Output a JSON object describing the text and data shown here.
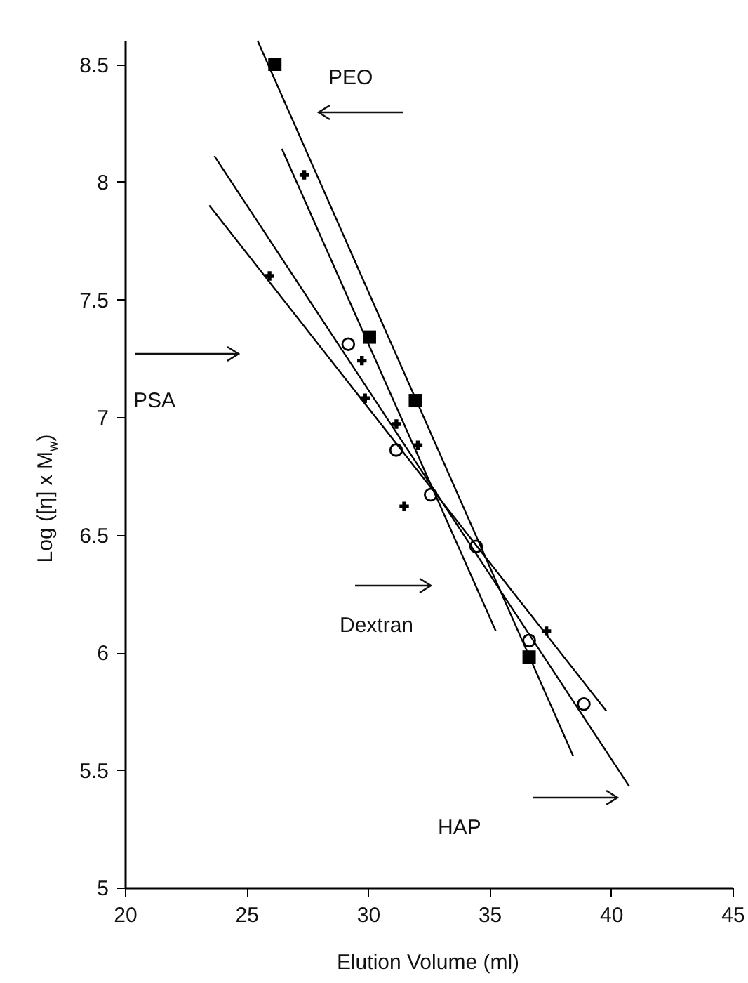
{
  "chart_data": {
    "type": "scatter",
    "xlabel": "Elution Volume (ml)",
    "ylabel": "Log ([η] x M$_{w}$)",
    "xlim": [
      20,
      45
    ],
    "ylim": [
      5,
      8.6
    ],
    "xticks": [
      20,
      25,
      30,
      35,
      40,
      45
    ],
    "yticks": [
      5,
      5.5,
      6,
      6.5,
      7,
      7.5,
      8,
      8.5
    ],
    "grid": false,
    "annotations": [
      "PEO",
      "PSA",
      "Dextran",
      "HAP"
    ],
    "series": [
      {
        "type": "line",
        "color": "#000000",
        "marker": "none",
        "x": [
          25.46,
          38.44
        ],
        "values": [
          8.6,
          5.56
        ]
      },
      {
        "type": "line",
        "color": "#000000",
        "marker": "none",
        "x": [
          26.46,
          35.26
        ],
        "values": [
          8.14,
          6.09
        ]
      },
      {
        "type": "line",
        "color": "#000000",
        "marker": "none",
        "x": [
          23.68,
          40.75
        ],
        "values": [
          8.11,
          5.43
        ]
      },
      {
        "type": "line",
        "color": "#000000",
        "marker": "none",
        "x": [
          23.47,
          39.81
        ],
        "values": [
          7.9,
          5.75
        ]
      },
      {
        "type": "scatter",
        "color": "#000000",
        "marker": "square",
        "x": [
          26.17,
          30.06,
          31.95,
          36.63
        ],
        "values": [
          8.5,
          7.34,
          7.07,
          5.98
        ]
      },
      {
        "type": "scatter",
        "color": "#000000",
        "marker": "cross",
        "x": [
          27.38,
          29.75,
          31.17,
          32.05
        ],
        "values": [
          8.03,
          7.24,
          6.97,
          6.88
        ]
      },
      {
        "type": "scatter",
        "color": "#000000",
        "marker": "circle",
        "x": [
          29.19,
          31.16,
          32.58,
          34.45,
          36.63,
          38.88
        ],
        "values": [
          7.31,
          6.86,
          6.67,
          6.45,
          6.05,
          5.78
        ]
      },
      {
        "type": "scatter",
        "color": "#000000",
        "marker": "cross",
        "x": [
          25.95,
          29.88,
          31.49,
          37.34
        ],
        "values": [
          7.6,
          7.08,
          6.62,
          6.09
        ]
      }
    ]
  }
}
